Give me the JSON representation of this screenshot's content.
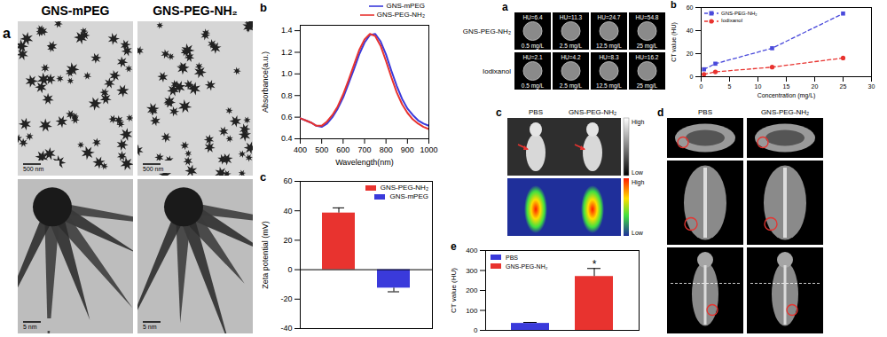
{
  "chart_data": [
    {
      "panel": "b",
      "type": "line",
      "x_label": "Wavelength(nm)",
      "y_label": "Absorbance(a.u.)",
      "x": [
        400,
        425,
        450,
        475,
        500,
        525,
        550,
        575,
        600,
        625,
        650,
        675,
        700,
        725,
        750,
        775,
        800,
        825,
        850,
        875,
        900,
        925,
        950,
        975,
        1000
      ],
      "series": [
        {
          "name": "GNS-mPEG",
          "color": "#3a3adb",
          "line_style": "solid",
          "values": [
            0.59,
            0.57,
            0.55,
            0.52,
            0.51,
            0.54,
            0.6,
            0.68,
            0.78,
            0.91,
            1.04,
            1.18,
            1.29,
            1.36,
            1.37,
            1.3,
            1.18,
            1.03,
            0.89,
            0.77,
            0.68,
            0.62,
            0.57,
            0.54,
            0.52
          ]
        },
        {
          "name": "GNS-PEG-NH₂",
          "color": "#e8332f",
          "line_style": "solid",
          "values": [
            0.59,
            0.57,
            0.55,
            0.52,
            0.52,
            0.56,
            0.62,
            0.7,
            0.81,
            0.94,
            1.08,
            1.22,
            1.32,
            1.37,
            1.35,
            1.26,
            1.12,
            0.97,
            0.83,
            0.72,
            0.64,
            0.58,
            0.54,
            0.51,
            0.49
          ]
        }
      ],
      "xlim": [
        400,
        1000
      ],
      "xticks": [
        400,
        500,
        600,
        700,
        800,
        900,
        1000
      ],
      "ylim": [
        0.4,
        1.45
      ],
      "yticks": [
        0.4,
        0.6,
        0.8,
        {
          "value": 1,
          "label": "1.0"
        },
        1.2,
        1.4
      ],
      "legend": "top"
    },
    {
      "panel": "c",
      "type": "bar",
      "y_label": "Zeta potential (mV)",
      "categories": [
        "GNS-PEG-NH₂",
        "GNS-mPEG"
      ],
      "values": [
        38.5,
        -12.5
      ],
      "errors": [
        3.5,
        2.5
      ],
      "colors": [
        "#e8332f",
        "#3a3adb"
      ],
      "ylim": [
        -40,
        60
      ],
      "yticks": [
        -40,
        -20,
        0,
        20,
        40,
        60
      ],
      "legend": "top-right",
      "tick_labels": "y"
    },
    {
      "panel": "b",
      "type": "line",
      "x_label": "Concentration (mg/L)",
      "y_label": "CT value (HU)",
      "x": [
        0.5,
        2.5,
        12.5,
        25
      ],
      "series": [
        {
          "name": "GNS-PEG-NH₂",
          "color": "#4a4adb",
          "marker": "square",
          "line_style": "dashed",
          "values": [
            6.4,
            11.3,
            24.7,
            54.8
          ]
        },
        {
          "name": "Iodixanol",
          "color": "#e8332f",
          "marker": "circle",
          "line_style": "dashed",
          "values": [
            2.1,
            4.2,
            8.3,
            16.2
          ]
        }
      ],
      "xlim": [
        0,
        30
      ],
      "xticks": [
        0,
        5,
        10,
        15,
        20,
        25,
        30
      ],
      "ylim": [
        0,
        60
      ],
      "yticks": [
        0,
        20,
        40,
        60
      ],
      "legend": "top-left"
    },
    {
      "panel": "e",
      "type": "bar",
      "y_label": "CT value (HU)",
      "categories": [
        "PBS",
        "GNS-PEG-NH₂"
      ],
      "values": [
        35,
        270
      ],
      "errors": [
        5,
        40
      ],
      "colors": [
        "#3a3adb",
        "#e8332f"
      ],
      "ylim": [
        0,
        400
      ],
      "yticks": [
        0,
        100,
        200,
        300,
        400
      ],
      "annotations": [
        {
          "category": "GNS-PEG-NH₂",
          "text": "*"
        }
      ],
      "legend": "top-left",
      "tick_labels": "y"
    }
  ],
  "images": {
    "tem": {
      "panel": "a",
      "columns": [
        "GNS-mPEG",
        "GNS-PEG-NH₂"
      ],
      "scale_bars": [
        "500 nm",
        "5 nm"
      ]
    },
    "phantoms": {
      "panel": "a",
      "rows": [
        {
          "label": "GNS-PEG-NH₂",
          "cells": [
            {
              "hu": "HU=6.4",
              "concentration": "0.5 mg/L"
            },
            {
              "hu": "HU=11.3",
              "concentration": "2.5 mg/L"
            },
            {
              "hu": "HU=24.7",
              "concentration": "12.5 mg/L"
            },
            {
              "hu": "HU=54.8",
              "concentration": "25 mg/L"
            }
          ]
        },
        {
          "label": "Iodixanol",
          "cells": [
            {
              "hu": "HU=2.1",
              "concentration": "0.5 mg/L"
            },
            {
              "hu": "HU=4.2",
              "concentration": "2.5 mg/L"
            },
            {
              "hu": "HU=8.3",
              "concentration": "12.5 mg/L"
            },
            {
              "hu": "HU=16.2",
              "concentration": "25 mg/L"
            }
          ]
        }
      ]
    },
    "imaging": {
      "panel": "c",
      "columns": [
        "PBS",
        "GNS-PEG-NH₂"
      ],
      "color_scales": [
        [
          "High",
          "Low"
        ],
        [
          "High",
          "Low"
        ]
      ]
    },
    "ct_slices": {
      "panel": "d",
      "columns": [
        "PBS",
        "GNS-PEG-NH₂"
      ]
    }
  }
}
